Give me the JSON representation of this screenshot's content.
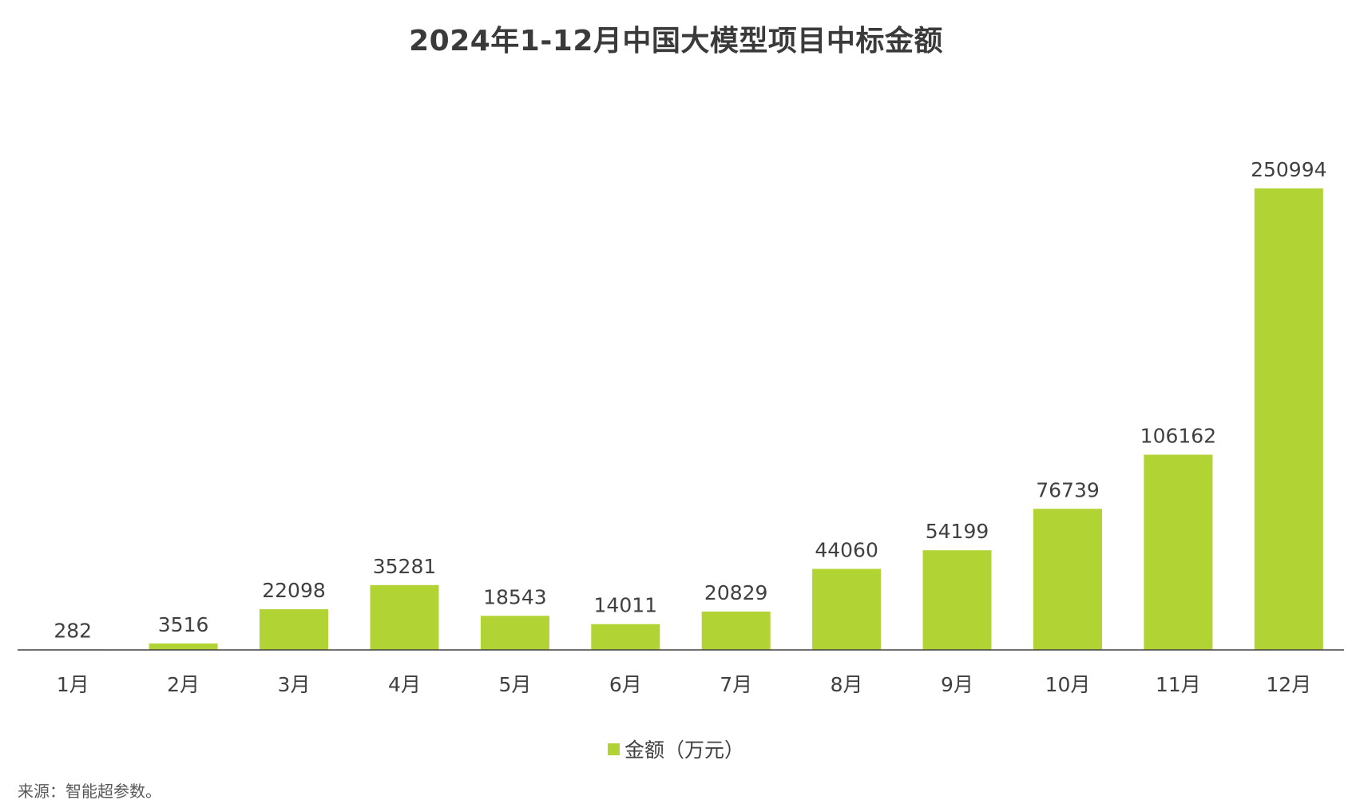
{
  "chart_data": {
    "type": "bar",
    "title": "2024年1-12月中国大模型项目中标金额",
    "categories": [
      "1月",
      "2月",
      "3月",
      "4月",
      "5月",
      "6月",
      "7月",
      "8月",
      "9月",
      "10月",
      "11月",
      "12月"
    ],
    "series": [
      {
        "name": "金额（万元）",
        "color": "#b1d334",
        "values": [
          282,
          3516,
          22098,
          35281,
          18543,
          14011,
          20829,
          44060,
          54199,
          76739,
          106162,
          250994
        ]
      }
    ],
    "data_labels": [
      "282",
      "3516",
      "22098",
      "35281",
      "18543",
      "14011",
      "20829",
      "44060",
      "54199",
      "76739",
      "106162",
      "250994"
    ],
    "xlabel": "",
    "ylabel": "",
    "ylim": [
      0,
      250994
    ],
    "grid": false,
    "legend_position": "bottom"
  },
  "legend": {
    "label": "金额（万元）"
  },
  "source": "来源：智能超参数。"
}
